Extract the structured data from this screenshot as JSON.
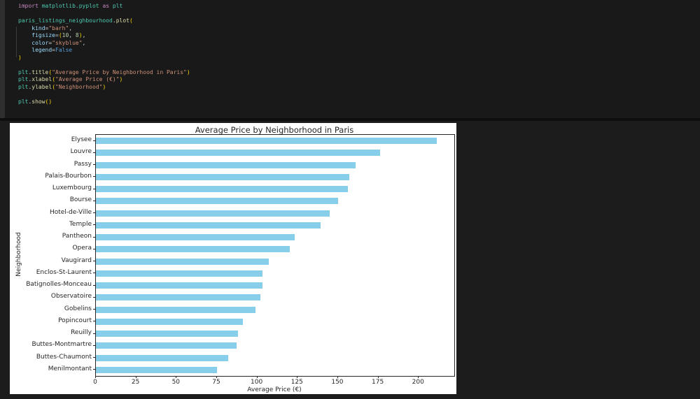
{
  "editor": {
    "token_colors": {
      "kw": "#C586C0",
      "mod": "#4EC9B0",
      "fn": "#DCDCAA",
      "prop": "#9CDCFE",
      "str": "#CE9178",
      "num": "#B5CEA8",
      "const": "#569CD6",
      "br": "#FFD700",
      "pl": "#D4D4D4"
    },
    "lines": [
      [
        {
          "t": "import",
          "c": "kw"
        },
        {
          "t": " ",
          "c": "pl"
        },
        {
          "t": "matplotlib.pyplot",
          "c": "mod"
        },
        {
          "t": " ",
          "c": "pl"
        },
        {
          "t": "as",
          "c": "kw"
        },
        {
          "t": " ",
          "c": "pl"
        },
        {
          "t": "plt",
          "c": "mod"
        }
      ],
      [],
      [
        {
          "t": "paris_listings_neighbourhood",
          "c": "mod"
        },
        {
          "t": ".",
          "c": "pl"
        },
        {
          "t": "plot",
          "c": "fn"
        },
        {
          "t": "(",
          "c": "br"
        }
      ],
      [
        {
          "t": "    ",
          "c": "pl"
        },
        {
          "t": "kind",
          "c": "prop"
        },
        {
          "t": "=",
          "c": "pl"
        },
        {
          "t": "\"barh\"",
          "c": "str"
        },
        {
          "t": ",",
          "c": "pl"
        }
      ],
      [
        {
          "t": "    ",
          "c": "pl"
        },
        {
          "t": "figsize",
          "c": "prop"
        },
        {
          "t": "=",
          "c": "pl"
        },
        {
          "t": "(",
          "c": "br"
        },
        {
          "t": "10",
          "c": "num"
        },
        {
          "t": ", ",
          "c": "pl"
        },
        {
          "t": "8",
          "c": "num"
        },
        {
          "t": ")",
          "c": "br"
        },
        {
          "t": ",",
          "c": "pl"
        }
      ],
      [
        {
          "t": "    ",
          "c": "pl"
        },
        {
          "t": "color",
          "c": "prop"
        },
        {
          "t": "=",
          "c": "pl"
        },
        {
          "t": "\"skyblue\"",
          "c": "str"
        },
        {
          "t": ",",
          "c": "pl"
        }
      ],
      [
        {
          "t": "    ",
          "c": "pl"
        },
        {
          "t": "legend",
          "c": "prop"
        },
        {
          "t": "=",
          "c": "pl"
        },
        {
          "t": "False",
          "c": "const"
        }
      ],
      [
        {
          "t": ")",
          "c": "br"
        }
      ],
      [],
      [
        {
          "t": "plt",
          "c": "mod"
        },
        {
          "t": ".",
          "c": "pl"
        },
        {
          "t": "title",
          "c": "fn"
        },
        {
          "t": "(",
          "c": "br"
        },
        {
          "t": "\"Average Price by Neighborhood in Paris\"",
          "c": "str"
        },
        {
          "t": ")",
          "c": "br"
        }
      ],
      [
        {
          "t": "plt",
          "c": "mod"
        },
        {
          "t": ".",
          "c": "pl"
        },
        {
          "t": "xlabel",
          "c": "fn"
        },
        {
          "t": "(",
          "c": "br"
        },
        {
          "t": "\"Average Price (€)\"",
          "c": "str"
        },
        {
          "t": ")",
          "c": "br"
        }
      ],
      [
        {
          "t": "plt",
          "c": "mod"
        },
        {
          "t": ".",
          "c": "pl"
        },
        {
          "t": "ylabel",
          "c": "fn"
        },
        {
          "t": "(",
          "c": "br"
        },
        {
          "t": "\"Neighborhood\"",
          "c": "str"
        },
        {
          "t": ")",
          "c": "br"
        }
      ],
      [],
      [
        {
          "t": "plt",
          "c": "mod"
        },
        {
          "t": ".",
          "c": "pl"
        },
        {
          "t": "show",
          "c": "fn"
        },
        {
          "t": "(",
          "c": "br"
        },
        {
          "t": ")",
          "c": "br"
        }
      ]
    ]
  },
  "chart_data": {
    "type": "bar",
    "orientation": "horizontal",
    "title": "Average Price by Neighborhood in Paris",
    "xlabel": "Average Price (€)",
    "ylabel": "Neighborhood",
    "categories": [
      "Elysee",
      "Louvre",
      "Passy",
      "Palais-Bourbon",
      "Luxembourg",
      "Bourse",
      "Hotel-de-Ville",
      "Temple",
      "Pantheon",
      "Opera",
      "Vaugirard",
      "Enclos-St-Laurent",
      "Batignolles-Monceau",
      "Observatoire",
      "Gobelins",
      "Popincourt",
      "Reuilly",
      "Buttes-Montmartre",
      "Buttes-Chaumont",
      "Menilmontant"
    ],
    "values": [
      211,
      176,
      161,
      157,
      156,
      150,
      145,
      139,
      123,
      120,
      107,
      103,
      103,
      102,
      99,
      91,
      88,
      87,
      82,
      75
    ],
    "xlim": [
      0,
      222
    ],
    "xticks": [
      0,
      25,
      50,
      75,
      100,
      125,
      150,
      175,
      200
    ],
    "bar_color": "#87CEEB",
    "grid": false,
    "legend": false
  }
}
